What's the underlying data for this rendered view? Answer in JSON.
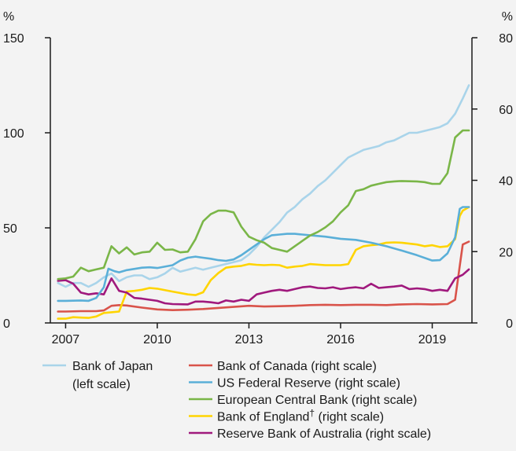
{
  "chart_data": {
    "type": "line",
    "left_unit": "%",
    "right_unit": "%",
    "left_axis": {
      "min": 0,
      "max": 150,
      "ticks": [
        "0",
        "50",
        "100",
        "150"
      ],
      "values": [
        0,
        50,
        100,
        150
      ]
    },
    "right_axis": {
      "min": 0,
      "max": 80,
      "ticks": [
        "0",
        "20",
        "40",
        "60",
        "80"
      ],
      "values": [
        0,
        20,
        40,
        60,
        80
      ]
    },
    "x_axis": {
      "min": 2006.5,
      "max": 2020.3,
      "ticks": [
        "2007",
        "2010",
        "2013",
        "2016",
        "2019"
      ],
      "values": [
        2007,
        2010,
        2013,
        2016,
        2019
      ]
    },
    "grid": false,
    "legend_position": "bottom",
    "series": [
      {
        "name": "Bank of Japan",
        "name_line2": "(left scale)",
        "axis": "left",
        "color": "#a9d4ea",
        "points": [
          [
            2006.75,
            21
          ],
          [
            2007.0,
            19
          ],
          [
            2007.25,
            21
          ],
          [
            2007.5,
            21
          ],
          [
            2007.75,
            19
          ],
          [
            2008.0,
            21
          ],
          [
            2008.25,
            24
          ],
          [
            2008.5,
            26
          ],
          [
            2008.75,
            22
          ],
          [
            2009.0,
            24
          ],
          [
            2009.25,
            25
          ],
          [
            2009.5,
            25
          ],
          [
            2009.75,
            23
          ],
          [
            2010.0,
            24
          ],
          [
            2010.25,
            26
          ],
          [
            2010.5,
            29
          ],
          [
            2010.75,
            27
          ],
          [
            2011.0,
            28
          ],
          [
            2011.25,
            29
          ],
          [
            2011.5,
            28
          ],
          [
            2011.75,
            29
          ],
          [
            2012.0,
            30
          ],
          [
            2012.25,
            31
          ],
          [
            2012.5,
            32
          ],
          [
            2012.75,
            33
          ],
          [
            2013.0,
            36
          ],
          [
            2013.25,
            40
          ],
          [
            2013.5,
            45
          ],
          [
            2013.75,
            49
          ],
          [
            2014.0,
            53
          ],
          [
            2014.25,
            58
          ],
          [
            2014.5,
            61
          ],
          [
            2014.75,
            65
          ],
          [
            2015.0,
            68
          ],
          [
            2015.25,
            72
          ],
          [
            2015.5,
            75
          ],
          [
            2015.75,
            79
          ],
          [
            2016.0,
            83
          ],
          [
            2016.25,
            87
          ],
          [
            2016.5,
            89
          ],
          [
            2016.75,
            91
          ],
          [
            2017.0,
            92
          ],
          [
            2017.25,
            93
          ],
          [
            2017.5,
            95
          ],
          [
            2017.75,
            96
          ],
          [
            2018.0,
            98
          ],
          [
            2018.25,
            100
          ],
          [
            2018.5,
            100
          ],
          [
            2018.75,
            101
          ],
          [
            2019.0,
            102
          ],
          [
            2019.25,
            103
          ],
          [
            2019.5,
            105
          ],
          [
            2019.75,
            110
          ],
          [
            2020.0,
            118
          ],
          [
            2020.2,
            125
          ]
        ]
      },
      {
        "name": "Bank of Canada (right scale)",
        "axis": "right",
        "color": "#d9534a",
        "points": [
          [
            2006.75,
            3.2
          ],
          [
            2007.0,
            3.2
          ],
          [
            2007.5,
            3.3
          ],
          [
            2008.0,
            3.3
          ],
          [
            2008.25,
            3.5
          ],
          [
            2008.5,
            4.8
          ],
          [
            2008.75,
            5.0
          ],
          [
            2009.0,
            4.9
          ],
          [
            2009.5,
            4.3
          ],
          [
            2010.0,
            3.8
          ],
          [
            2010.5,
            3.6
          ],
          [
            2011.0,
            3.7
          ],
          [
            2011.5,
            3.9
          ],
          [
            2012.0,
            4.2
          ],
          [
            2012.5,
            4.5
          ],
          [
            2013.0,
            4.8
          ],
          [
            2013.5,
            4.6
          ],
          [
            2014.0,
            4.7
          ],
          [
            2014.5,
            4.8
          ],
          [
            2015.0,
            5.0
          ],
          [
            2015.5,
            5.1
          ],
          [
            2016.0,
            5.0
          ],
          [
            2016.5,
            5.1
          ],
          [
            2017.0,
            5.1
          ],
          [
            2017.5,
            5.0
          ],
          [
            2018.0,
            5.2
          ],
          [
            2018.5,
            5.3
          ],
          [
            2019.0,
            5.2
          ],
          [
            2019.5,
            5.3
          ],
          [
            2019.75,
            6.5
          ],
          [
            2019.9,
            16
          ],
          [
            2020.0,
            22
          ],
          [
            2020.2,
            22.8
          ]
        ]
      },
      {
        "name": "US Federal Reserve (right scale)",
        "axis": "right",
        "color": "#5aafd8",
        "points": [
          [
            2006.75,
            6.2
          ],
          [
            2007.0,
            6.2
          ],
          [
            2007.5,
            6.3
          ],
          [
            2007.75,
            6.2
          ],
          [
            2008.0,
            7.0
          ],
          [
            2008.25,
            10
          ],
          [
            2008.4,
            15.2
          ],
          [
            2008.6,
            14.5
          ],
          [
            2008.75,
            14.2
          ],
          [
            2009.0,
            14.8
          ],
          [
            2009.5,
            15.5
          ],
          [
            2009.75,
            15.6
          ],
          [
            2010.0,
            15.4
          ],
          [
            2010.5,
            16.2
          ],
          [
            2010.75,
            17.5
          ],
          [
            2011.0,
            18.3
          ],
          [
            2011.25,
            18.6
          ],
          [
            2011.5,
            18.3
          ],
          [
            2011.75,
            18.0
          ],
          [
            2012.0,
            17.6
          ],
          [
            2012.25,
            17.4
          ],
          [
            2012.5,
            17.8
          ],
          [
            2012.75,
            19.0
          ],
          [
            2013.0,
            20.5
          ],
          [
            2013.25,
            22.0
          ],
          [
            2013.5,
            23.5
          ],
          [
            2013.75,
            24.6
          ],
          [
            2014.0,
            24.8
          ],
          [
            2014.25,
            25.0
          ],
          [
            2014.5,
            25.0
          ],
          [
            2014.75,
            24.8
          ],
          [
            2015.0,
            24.6
          ],
          [
            2015.5,
            24.2
          ],
          [
            2016.0,
            23.6
          ],
          [
            2016.5,
            23.3
          ],
          [
            2017.0,
            22.5
          ],
          [
            2017.5,
            21.5
          ],
          [
            2018.0,
            20.3
          ],
          [
            2018.5,
            19.0
          ],
          [
            2019.0,
            17.5
          ],
          [
            2019.25,
            17.6
          ],
          [
            2019.5,
            19.5
          ],
          [
            2019.75,
            24
          ],
          [
            2019.9,
            32
          ],
          [
            2020.0,
            32.5
          ],
          [
            2020.2,
            32.5
          ]
        ]
      },
      {
        "name": "European Central Bank (right scale)",
        "axis": "right",
        "color": "#7ab648",
        "points": [
          [
            2006.75,
            12.3
          ],
          [
            2007.0,
            12.5
          ],
          [
            2007.25,
            13.0
          ],
          [
            2007.5,
            15.5
          ],
          [
            2007.75,
            14.5
          ],
          [
            2008.0,
            15.0
          ],
          [
            2008.25,
            15.5
          ],
          [
            2008.5,
            21.5
          ],
          [
            2008.75,
            19.5
          ],
          [
            2009.0,
            21.2
          ],
          [
            2009.25,
            19.2
          ],
          [
            2009.5,
            19.8
          ],
          [
            2009.75,
            20.0
          ],
          [
            2010.0,
            22.5
          ],
          [
            2010.25,
            20.5
          ],
          [
            2010.5,
            20.6
          ],
          [
            2010.75,
            19.8
          ],
          [
            2011.0,
            20.0
          ],
          [
            2011.25,
            23.5
          ],
          [
            2011.5,
            28.5
          ],
          [
            2011.75,
            30.5
          ],
          [
            2012.0,
            31.5
          ],
          [
            2012.25,
            31.5
          ],
          [
            2012.5,
            31.0
          ],
          [
            2012.75,
            27.0
          ],
          [
            2013.0,
            24.2
          ],
          [
            2013.25,
            23.2
          ],
          [
            2013.5,
            22.5
          ],
          [
            2013.75,
            21.0
          ],
          [
            2014.0,
            20.5
          ],
          [
            2014.25,
            20.0
          ],
          [
            2014.5,
            21.5
          ],
          [
            2014.75,
            23.0
          ],
          [
            2015.0,
            24.5
          ],
          [
            2015.25,
            25.5
          ],
          [
            2015.5,
            26.8
          ],
          [
            2015.75,
            28.5
          ],
          [
            2016.0,
            31.0
          ],
          [
            2016.25,
            33.0
          ],
          [
            2016.5,
            37.0
          ],
          [
            2016.75,
            37.5
          ],
          [
            2017.0,
            38.5
          ],
          [
            2017.25,
            39.0
          ],
          [
            2017.5,
            39.5
          ],
          [
            2017.75,
            39.7
          ],
          [
            2018.0,
            39.8
          ],
          [
            2018.5,
            39.7
          ],
          [
            2018.75,
            39.5
          ],
          [
            2019.0,
            39.0
          ],
          [
            2019.25,
            39.0
          ],
          [
            2019.5,
            42.0
          ],
          [
            2019.75,
            52.0
          ],
          [
            2020.0,
            54.0
          ],
          [
            2020.2,
            54.0
          ]
        ]
      },
      {
        "name": "Bank of England",
        "name_suffix": "†",
        "name_rest": " (right scale)",
        "axis": "right",
        "color": "#ffd400",
        "points": [
          [
            2006.75,
            1.2
          ],
          [
            2007.0,
            1.2
          ],
          [
            2007.25,
            1.6
          ],
          [
            2007.5,
            1.5
          ],
          [
            2007.75,
            1.4
          ],
          [
            2008.0,
            1.8
          ],
          [
            2008.25,
            2.8
          ],
          [
            2008.5,
            3.0
          ],
          [
            2008.75,
            3.2
          ],
          [
            2009.0,
            8.8
          ],
          [
            2009.25,
            9.0
          ],
          [
            2009.5,
            9.3
          ],
          [
            2009.75,
            9.8
          ],
          [
            2010.0,
            9.6
          ],
          [
            2010.5,
            8.8
          ],
          [
            2011.0,
            8.0
          ],
          [
            2011.25,
            7.8
          ],
          [
            2011.5,
            8.6
          ],
          [
            2011.75,
            12.0
          ],
          [
            2012.0,
            14.0
          ],
          [
            2012.25,
            15.5
          ],
          [
            2012.5,
            15.8
          ],
          [
            2012.75,
            16.0
          ],
          [
            2013.0,
            16.5
          ],
          [
            2013.25,
            16.3
          ],
          [
            2013.5,
            16.2
          ],
          [
            2013.75,
            16.3
          ],
          [
            2014.0,
            16.2
          ],
          [
            2014.25,
            15.5
          ],
          [
            2014.5,
            15.8
          ],
          [
            2014.75,
            16.0
          ],
          [
            2015.0,
            16.5
          ],
          [
            2015.5,
            16.2
          ],
          [
            2016.0,
            16.2
          ],
          [
            2016.25,
            16.5
          ],
          [
            2016.5,
            20.5
          ],
          [
            2016.75,
            21.5
          ],
          [
            2017.0,
            21.8
          ],
          [
            2017.25,
            22.0
          ],
          [
            2017.5,
            22.5
          ],
          [
            2017.75,
            22.6
          ],
          [
            2018.0,
            22.5
          ],
          [
            2018.5,
            22.0
          ],
          [
            2018.75,
            21.5
          ],
          [
            2019.0,
            21.8
          ],
          [
            2019.25,
            21.3
          ],
          [
            2019.5,
            21.5
          ],
          [
            2019.75,
            23.5
          ],
          [
            2019.9,
            30
          ],
          [
            2020.0,
            31.5
          ],
          [
            2020.2,
            32.5
          ]
        ]
      },
      {
        "name": "Reserve Bank of Australia (right scale)",
        "axis": "right",
        "color": "#a0197d",
        "points": [
          [
            2006.75,
            11.8
          ],
          [
            2007.0,
            12.0
          ],
          [
            2007.25,
            11.0
          ],
          [
            2007.5,
            8.5
          ],
          [
            2007.75,
            8.0
          ],
          [
            2008.0,
            8.3
          ],
          [
            2008.25,
            8.0
          ],
          [
            2008.5,
            12.5
          ],
          [
            2008.75,
            9.0
          ],
          [
            2009.0,
            8.5
          ],
          [
            2009.25,
            7.0
          ],
          [
            2009.5,
            6.8
          ],
          [
            2009.75,
            6.5
          ],
          [
            2010.0,
            6.2
          ],
          [
            2010.25,
            5.5
          ],
          [
            2010.5,
            5.3
          ],
          [
            2011.0,
            5.2
          ],
          [
            2011.25,
            6.0
          ],
          [
            2011.5,
            6.0
          ],
          [
            2011.75,
            5.8
          ],
          [
            2012.0,
            5.5
          ],
          [
            2012.25,
            6.3
          ],
          [
            2012.5,
            6.0
          ],
          [
            2012.75,
            6.5
          ],
          [
            2013.0,
            6.2
          ],
          [
            2013.25,
            8.0
          ],
          [
            2013.5,
            8.5
          ],
          [
            2013.75,
            9.0
          ],
          [
            2014.0,
            9.3
          ],
          [
            2014.25,
            9.0
          ],
          [
            2014.5,
            9.5
          ],
          [
            2014.75,
            10.0
          ],
          [
            2015.0,
            10.2
          ],
          [
            2015.25,
            9.8
          ],
          [
            2015.5,
            9.7
          ],
          [
            2015.75,
            10.0
          ],
          [
            2016.0,
            9.5
          ],
          [
            2016.25,
            9.8
          ],
          [
            2016.5,
            10.0
          ],
          [
            2016.75,
            9.7
          ],
          [
            2017.0,
            11.0
          ],
          [
            2017.25,
            9.8
          ],
          [
            2017.5,
            10.0
          ],
          [
            2017.75,
            10.2
          ],
          [
            2018.0,
            10.5
          ],
          [
            2018.25,
            9.5
          ],
          [
            2018.5,
            9.7
          ],
          [
            2018.75,
            9.5
          ],
          [
            2019.0,
            9.0
          ],
          [
            2019.25,
            9.3
          ],
          [
            2019.5,
            9.0
          ],
          [
            2019.75,
            12.5
          ],
          [
            2020.0,
            13.5
          ],
          [
            2020.2,
            15.0
          ]
        ]
      }
    ]
  }
}
